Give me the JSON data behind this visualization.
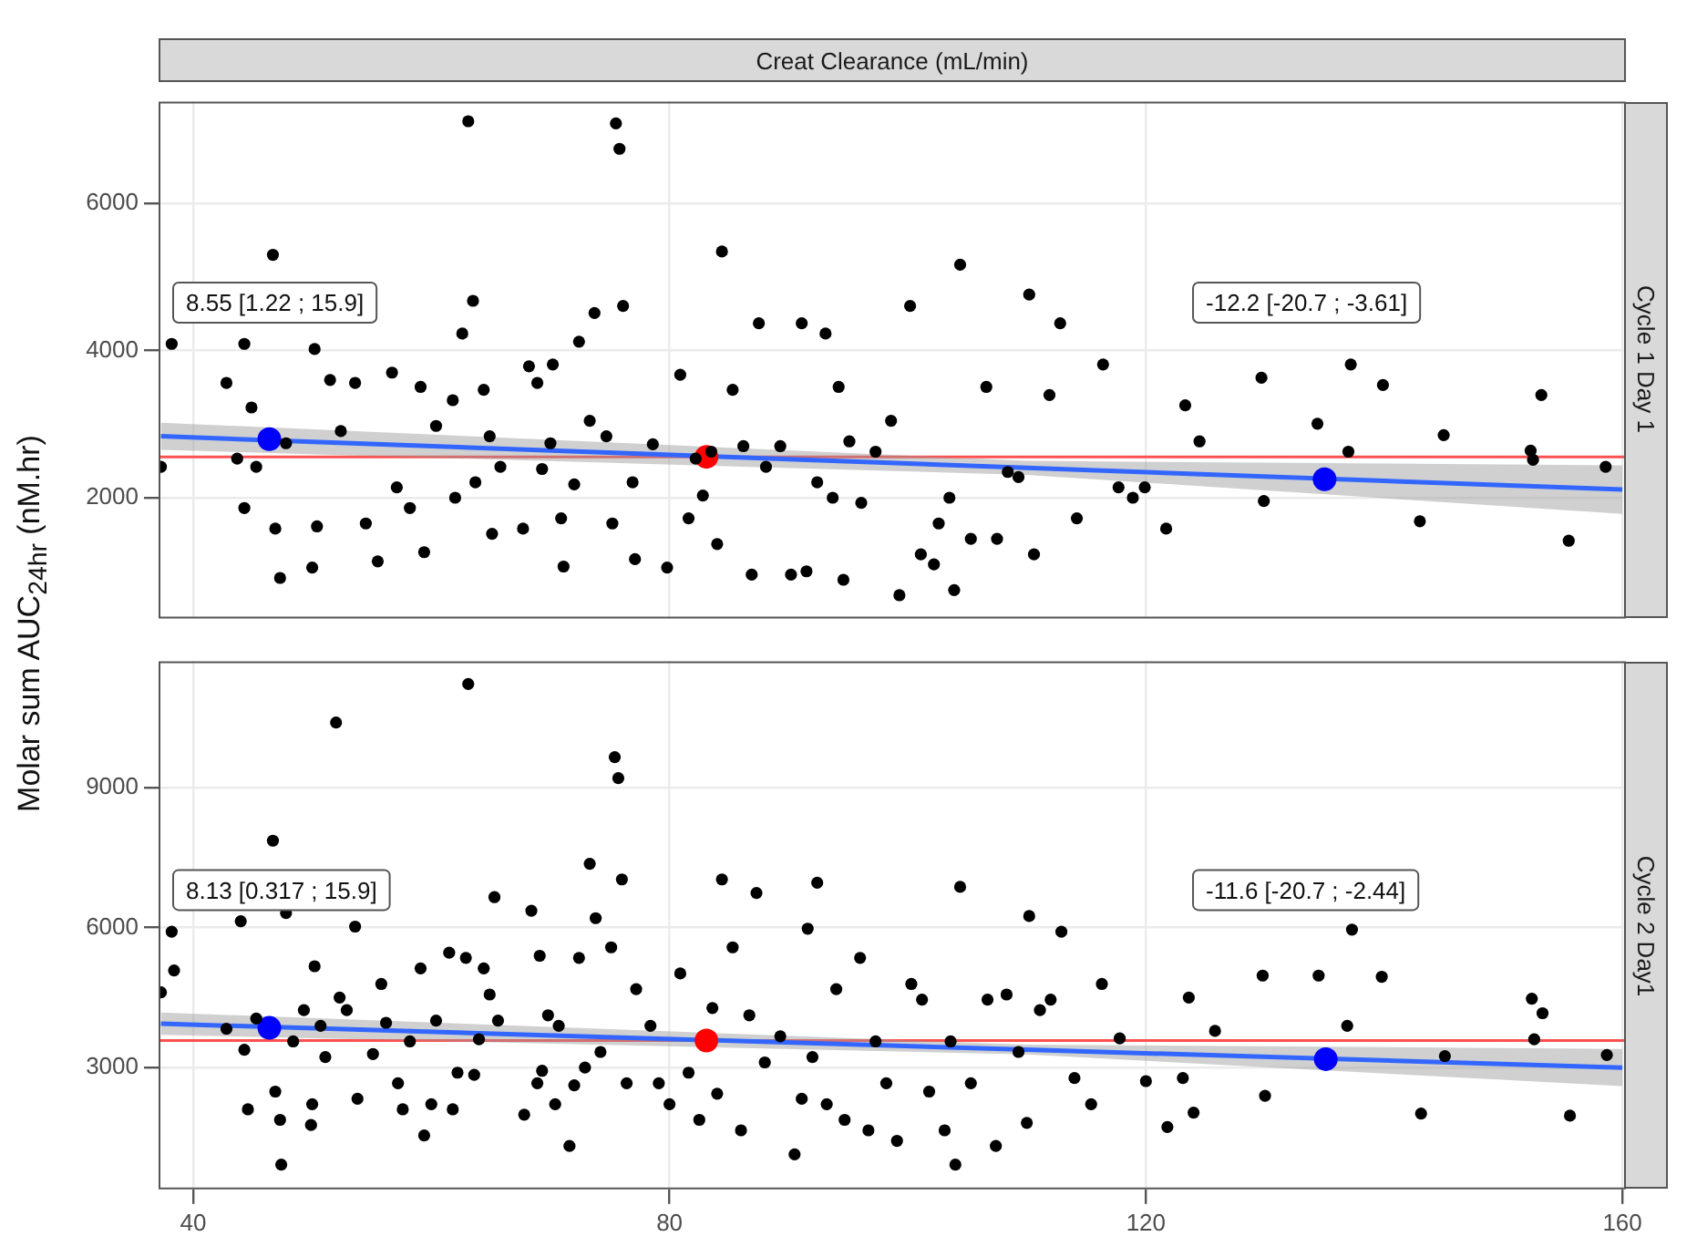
{
  "chart_data": [
    {
      "type": "scatter",
      "title": "Cycle 1 Day 1",
      "xlabel": "Creat Clearance (mL/min)",
      "ylabel": "Molar sum AUC$_{24hr}$ (nM.hr)",
      "xlim": [
        37.1,
        160.3
      ],
      "xticks": [
        40,
        80,
        120,
        160
      ],
      "ylim": [
        360,
        7380
      ],
      "yticks": [
        2000,
        4000,
        6000
      ],
      "grid": true,
      "legend": false,
      "marker": "circle",
      "tick_labels": "y",
      "annotations": [
        "8.55 [1.22 ; 15.9]",
        "-12.2 [-20.7 ; -3.61]"
      ],
      "ref_lines": [
        {
          "axis": "y",
          "value": 2555,
          "color": "#ff5050"
        }
      ],
      "series": [
        {
          "color": "#000000",
          "x": [
            37.3,
            38.2,
            42.8,
            44.3,
            43.7,
            44.9,
            45.3,
            44.3,
            46.7,
            46.9,
            47.3,
            47.8,
            50.0,
            50.2,
            50.4,
            51.5,
            52.4,
            53.6,
            54.5,
            55.5,
            56.7,
            57.1,
            58.2,
            59.1,
            59.4,
            60.4,
            61.8,
            62.0,
            62.6,
            63.1,
            63.5,
            63.7,
            64.4,
            64.9,
            65.1,
            65.8,
            67.7,
            68.2,
            68.9,
            69.3,
            70.0,
            70.2,
            70.9,
            71.1,
            72.0,
            72.4,
            73.3,
            73.7,
            74.7,
            75.2,
            75.5,
            75.8,
            76.1,
            76.9,
            77.1,
            78.6,
            79.8,
            80.9,
            81.6,
            82.2,
            82.8,
            83.5,
            84.0,
            84.4,
            85.3,
            86.2,
            86.9,
            87.5,
            88.1,
            89.3,
            90.2,
            91.1,
            91.5,
            92.4,
            93.1,
            93.7,
            94.2,
            94.6,
            95.1,
            96.1,
            97.3,
            98.6,
            99.3,
            100.2,
            101.1,
            102.2,
            102.6,
            103.5,
            103.9,
            104.4,
            105.3,
            106.6,
            107.5,
            108.4,
            109.3,
            110.2,
            110.6,
            111.9,
            112.8,
            114.2,
            116.4,
            117.7,
            118.9,
            119.9,
            121.7,
            123.3,
            124.5,
            129.7,
            129.9,
            134.4,
            137.0,
            137.2,
            139.9,
            143.0,
            145.0,
            152.3,
            152.5,
            153.2,
            155.5,
            158.6
          ],
          "values": [
            2420,
            4090,
            3560,
            4090,
            2530,
            3226,
            2420,
            1860,
            5300,
            1580,
            910,
            2740,
            1050,
            4020,
            1610,
            3600,
            2905,
            3560,
            1650,
            1135,
            3700,
            2140,
            1860,
            3505,
            1260,
            2975,
            3325,
            2000,
            4230,
            7115,
            4675,
            2210,
            3465,
            2835,
            1510,
            2420,
            1580,
            3785,
            3560,
            2390,
            2740,
            3810,
            1720,
            1065,
            2180,
            4120,
            3045,
            4510,
            2835,
            1650,
            7085,
            6740,
            4605,
            2210,
            1165,
            2725,
            1050,
            3670,
            1720,
            2530,
            2030,
            2625,
            1370,
            5345,
            3465,
            2700,
            955,
            4370,
            2420,
            2700,
            955,
            4370,
            1000,
            2210,
            4230,
            2000,
            3505,
            885,
            2765,
            1930,
            2625,
            3045,
            675,
            4605,
            1230,
            1095,
            1650,
            2000,
            745,
            5165,
            1440,
            3505,
            1440,
            2350,
            2280,
            4760,
            1230,
            3395,
            4370,
            1720,
            3810,
            2140,
            2000,
            2140,
            1580,
            3255,
            2765,
            3630,
            1955,
            3005,
            2625,
            3810,
            3530,
            1680,
            2850,
            2640,
            2515,
            3395,
            1415,
            2420
          ]
        },
        {
          "type": "line",
          "marker": "none",
          "color": "#3366ff",
          "x": [
            37.3,
            110,
            160
          ],
          "values": [
            2835,
            2405,
            2110
          ],
          "lower": [
            2650,
            2310,
            1780
          ],
          "upper": [
            3020,
            2500,
            2440
          ]
        },
        {
          "color": "#0000ff",
          "x": [
            46.4,
            135.0
          ],
          "values": [
            2795,
            2250
          ]
        },
        {
          "color": "#ff0000",
          "x": [
            83.1
          ],
          "values": [
            2555
          ]
        }
      ]
    },
    {
      "type": "scatter",
      "title": "Cycle 2 Day1",
      "xlim": [
        37.1,
        160.3
      ],
      "xticks": [
        40,
        80,
        120,
        160
      ],
      "ylim": [
        390,
        11700
      ],
      "yticks": [
        3000,
        6000,
        9000
      ],
      "grid": true,
      "legend": false,
      "marker": "circle",
      "annotations": [
        "8.13 [0.317 ; 15.9]",
        "-11.6 [-20.7 ; -2.44]"
      ],
      "ref_lines": [
        {
          "axis": "y",
          "value": 3580,
          "color": "#ff5050"
        }
      ],
      "series": [
        {
          "color": "#000000",
          "x": [
            37.3,
            38.2,
            38.4,
            42.8,
            44.0,
            44.3,
            44.6,
            45.3,
            46.7,
            46.9,
            47.3,
            47.4,
            47.8,
            48.4,
            49.3,
            49.9,
            50.0,
            50.2,
            50.7,
            51.1,
            52.0,
            52.3,
            52.9,
            53.6,
            53.8,
            55.1,
            55.8,
            56.2,
            57.2,
            57.6,
            58.2,
            59.1,
            59.4,
            60.0,
            60.4,
            61.5,
            61.8,
            62.2,
            62.9,
            63.1,
            63.6,
            64.0,
            64.4,
            64.9,
            65.3,
            65.6,
            67.8,
            68.4,
            68.9,
            69.1,
            69.3,
            69.8,
            70.4,
            70.7,
            71.6,
            72.0,
            72.4,
            72.9,
            73.3,
            73.8,
            74.2,
            75.1,
            75.4,
            75.7,
            76.0,
            76.4,
            77.2,
            78.4,
            79.1,
            80.0,
            80.9,
            81.6,
            82.5,
            83.6,
            84.0,
            84.4,
            85.3,
            86.0,
            86.7,
            87.3,
            88.0,
            89.3,
            90.5,
            91.1,
            91.6,
            92.0,
            92.4,
            93.2,
            94.0,
            94.7,
            96.0,
            96.7,
            97.3,
            98.2,
            99.1,
            100.3,
            101.2,
            101.8,
            103.1,
            103.6,
            104.0,
            104.4,
            105.3,
            106.7,
            107.4,
            108.3,
            109.3,
            110.0,
            110.2,
            111.1,
            112.0,
            112.9,
            114.0,
            115.4,
            116.3,
            117.8,
            120.0,
            121.8,
            123.1,
            123.6,
            124.0,
            125.8,
            129.8,
            130.0,
            134.5,
            136.9,
            137.3,
            139.8,
            143.1,
            145.1,
            152.4,
            152.6,
            153.3,
            155.6,
            158.7
          ],
          "values": [
            4610,
            5910,
            5080,
            3830,
            6135,
            3380,
            2105,
            4050,
            7860,
            2485,
            1880,
            920,
            6310,
            3560,
            4230,
            1770,
            2215,
            5170,
            3895,
            3225,
            10390,
            4500,
            4230,
            6020,
            2330,
            3290,
            4790,
            3960,
            2665,
            2105,
            3560,
            5125,
            1545,
            2215,
            4005,
            5460,
            2105,
            2890,
            5350,
            11215,
            2845,
            3605,
            5125,
            4565,
            6650,
            4005,
            1990,
            6360,
            2665,
            5395,
            2930,
            4120,
            2215,
            3895,
            1320,
            2620,
            5350,
            3000,
            7365,
            6200,
            3335,
            5575,
            9650,
            9200,
            7030,
            2665,
            4680,
            3895,
            2665,
            2215,
            5015,
            2890,
            1880,
            4275,
            2440,
            7030,
            5575,
            1655,
            4120,
            6740,
            3110,
            3670,
            1140,
            2330,
            5975,
            3225,
            6960,
            2215,
            4680,
            1880,
            5350,
            1655,
            3560,
            2665,
            1430,
            4790,
            4455,
            2485,
            1655,
            3560,
            920,
            6870,
            2665,
            4455,
            1320,
            4565,
            3335,
            1815,
            6245,
            4230,
            4455,
            5910,
            2775,
            2215,
            4790,
            3625,
            2710,
            1725,
            2775,
            4500,
            2035,
            3785,
            4970,
            2395,
            4970,
            3895,
            5955,
            4945,
            2015,
            3245,
            4475,
            3605,
            4165,
            1970,
            3270
          ]
        },
        {
          "type": "line",
          "marker": "none",
          "color": "#3366ff",
          "x": [
            37.3,
            110,
            160
          ],
          "values": [
            3940,
            3383,
            3000
          ],
          "lower": [
            3700,
            3280,
            2600
          ],
          "upper": [
            4180,
            3490,
            3400
          ]
        },
        {
          "color": "#0000ff",
          "x": [
            46.4,
            135.1
          ],
          "values": [
            3850,
            3180
          ]
        },
        {
          "color": "#ff0000",
          "x": [
            83.1
          ],
          "values": [
            3580
          ]
        }
      ]
    }
  ]
}
